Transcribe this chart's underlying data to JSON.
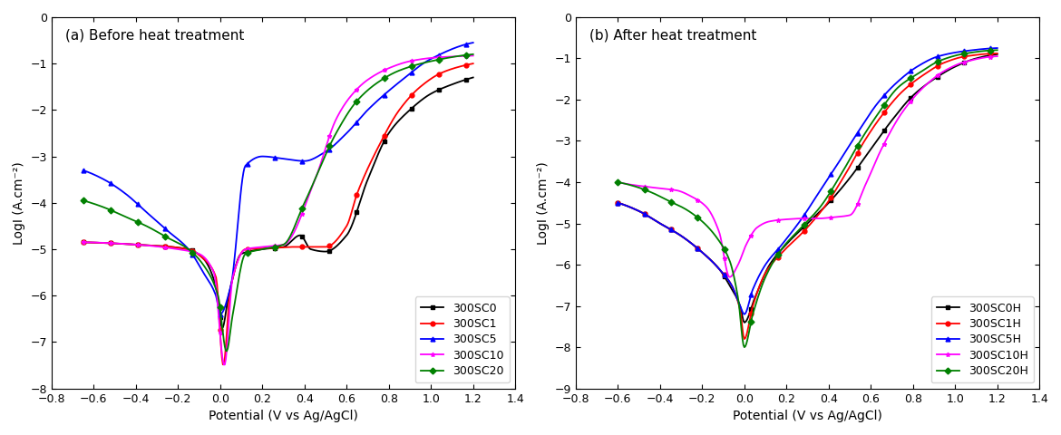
{
  "panel_a_title": "(a) Before heat treatment",
  "panel_b_title": "(b) After heat treatment",
  "xlabel": "Potential (V vs Ag/AgCl)",
  "ylabel": "LogI (A.cm⁻²)",
  "xlim": [
    -0.8,
    1.4
  ],
  "ylim_a": [
    -8,
    0
  ],
  "ylim_b": [
    -9,
    0
  ],
  "xticks": [
    -0.8,
    -0.6,
    -0.4,
    -0.2,
    0.0,
    0.2,
    0.4,
    0.6,
    0.8,
    1.0,
    1.2,
    1.4
  ],
  "yticks_a": [
    0,
    -1,
    -2,
    -3,
    -4,
    -5,
    -6,
    -7,
    -8
  ],
  "yticks_b": [
    0,
    -1,
    -2,
    -3,
    -4,
    -5,
    -6,
    -7,
    -8,
    -9
  ],
  "colors": {
    "SC0": "#000000",
    "SC1": "#ff0000",
    "SC5": "#0000ff",
    "SC10": "#ff00ff",
    "SC20": "#008000"
  },
  "markers": {
    "SC0": "s",
    "SC1": "o",
    "SC5": "^",
    "SC10": "*",
    "SC20": "D"
  },
  "legend_a": [
    "300SC0",
    "300SC1",
    "300SC5",
    "300SC10",
    "300SC20"
  ],
  "legend_b": [
    "300SC0H",
    "300SC1H",
    "300SC5H",
    "300SC10H",
    "300SC20H"
  ]
}
